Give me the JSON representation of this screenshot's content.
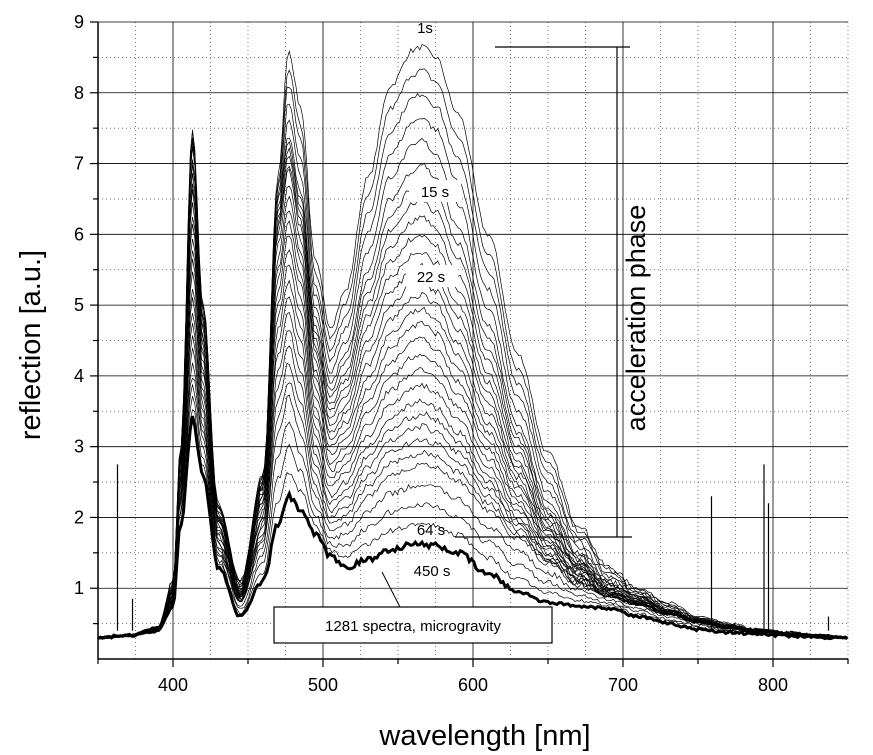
{
  "chart_data": {
    "type": "line",
    "title": "",
    "xlabel": "wavelength [nm]",
    "ylabel": "reflection [a.u.]",
    "xlim": [
      350,
      850
    ],
    "ylim": [
      0,
      9
    ],
    "x_ticks": [
      400,
      500,
      600,
      700,
      800
    ],
    "y_ticks": [
      1,
      2,
      3,
      4,
      5,
      6,
      7,
      8,
      9
    ],
    "grid": "major solid, minor dotted",
    "legend": "none",
    "line_color": "#000000",
    "series": [
      {
        "label": "1s",
        "x": [
          350,
          370,
          390,
          400,
          405,
          413,
          420,
          430,
          445,
          460,
          470,
          477,
          485,
          495,
          505,
          515,
          530,
          545,
          560,
          566,
          575,
          590,
          610,
          630,
          650,
          670,
          690,
          710,
          730,
          750,
          770,
          790,
          810,
          830,
          850
        ],
        "y": [
          0.3,
          0.33,
          0.45,
          1.1,
          3.0,
          7.5,
          5.0,
          2.2,
          1.1,
          2.6,
          6.8,
          8.6,
          7.8,
          5.6,
          4.7,
          5.2,
          6.8,
          8.1,
          8.6,
          8.65,
          8.5,
          7.7,
          6.0,
          4.3,
          2.9,
          1.9,
          1.3,
          1.0,
          0.8,
          0.6,
          0.5,
          0.42,
          0.38,
          0.34,
          0.3
        ]
      },
      {
        "label": "15 s",
        "x": [
          350,
          370,
          390,
          400,
          405,
          413,
          420,
          430,
          445,
          460,
          470,
          477,
          485,
          495,
          505,
          515,
          530,
          545,
          560,
          566,
          575,
          590,
          610,
          630,
          650,
          670,
          690,
          710,
          730,
          750,
          770,
          790,
          810,
          830,
          850
        ],
        "y": [
          0.3,
          0.33,
          0.44,
          1.0,
          2.9,
          7.2,
          4.8,
          2.1,
          1.0,
          2.5,
          6.4,
          7.4,
          6.6,
          4.8,
          3.9,
          4.3,
          5.5,
          6.5,
          6.9,
          7.0,
          6.8,
          6.1,
          4.7,
          3.3,
          2.2,
          1.5,
          1.1,
          0.9,
          0.7,
          0.55,
          0.47,
          0.4,
          0.36,
          0.33,
          0.3
        ]
      },
      {
        "label": "22 s",
        "x": [
          350,
          370,
          390,
          400,
          405,
          413,
          420,
          430,
          445,
          460,
          470,
          477,
          485,
          495,
          505,
          515,
          530,
          545,
          560,
          566,
          575,
          590,
          610,
          630,
          650,
          670,
          690,
          710,
          730,
          750,
          770,
          790,
          810,
          830,
          850
        ],
        "y": [
          0.3,
          0.33,
          0.43,
          0.95,
          2.8,
          6.6,
          4.5,
          2.0,
          0.95,
          2.4,
          6.0,
          6.9,
          6.1,
          4.3,
          3.4,
          3.7,
          4.7,
          5.4,
          5.7,
          5.75,
          5.6,
          5.0,
          3.9,
          2.8,
          1.9,
          1.35,
          1.0,
          0.85,
          0.68,
          0.55,
          0.46,
          0.4,
          0.36,
          0.33,
          0.3
        ]
      },
      {
        "label": "",
        "x": [
          350,
          370,
          390,
          400,
          405,
          413,
          420,
          430,
          445,
          460,
          470,
          477,
          485,
          495,
          505,
          515,
          530,
          545,
          560,
          566,
          575,
          590,
          610,
          630,
          650,
          670,
          690,
          710,
          730,
          750,
          770,
          790,
          810,
          830,
          850
        ],
        "y": [
          0.3,
          0.33,
          0.42,
          0.9,
          2.6,
          5.8,
          4.1,
          1.9,
          0.9,
          2.2,
          5.2,
          6.0,
          5.3,
          3.7,
          2.9,
          3.1,
          3.8,
          4.4,
          4.7,
          4.75,
          4.6,
          4.1,
          3.2,
          2.4,
          1.7,
          1.25,
          0.95,
          0.8,
          0.65,
          0.53,
          0.45,
          0.39,
          0.35,
          0.32,
          0.3
        ]
      },
      {
        "label": "",
        "x": [
          350,
          370,
          390,
          400,
          405,
          413,
          420,
          430,
          445,
          460,
          470,
          477,
          485,
          495,
          505,
          515,
          530,
          545,
          560,
          566,
          575,
          590,
          610,
          630,
          650,
          670,
          690,
          710,
          730,
          750,
          770,
          790,
          810,
          830,
          850
        ],
        "y": [
          0.3,
          0.33,
          0.41,
          0.85,
          2.4,
          4.9,
          3.6,
          1.7,
          0.85,
          1.9,
          4.3,
          4.9,
          4.3,
          3.0,
          2.3,
          2.5,
          3.0,
          3.4,
          3.6,
          3.65,
          3.55,
          3.2,
          2.6,
          2.0,
          1.5,
          1.15,
          0.9,
          0.78,
          0.64,
          0.52,
          0.44,
          0.39,
          0.35,
          0.32,
          0.3
        ]
      },
      {
        "label": "64 s",
        "x": [
          350,
          370,
          390,
          400,
          405,
          413,
          420,
          430,
          445,
          460,
          470,
          477,
          485,
          495,
          505,
          515,
          530,
          545,
          560,
          566,
          575,
          590,
          610,
          630,
          650,
          670,
          690,
          710,
          730,
          750,
          770,
          790,
          810,
          830,
          850
        ],
        "y": [
          0.3,
          0.33,
          0.4,
          0.8,
          2.2,
          4.0,
          3.1,
          1.5,
          0.8,
          1.6,
          3.2,
          3.7,
          3.2,
          2.3,
          1.8,
          1.9,
          2.3,
          2.6,
          2.7,
          2.75,
          2.7,
          2.5,
          2.1,
          1.7,
          1.35,
          1.05,
          0.88,
          0.76,
          0.63,
          0.52,
          0.44,
          0.39,
          0.35,
          0.32,
          0.3
        ]
      },
      {
        "label": "450 s",
        "x": [
          350,
          370,
          390,
          400,
          405,
          413,
          420,
          430,
          445,
          460,
          470,
          477,
          485,
          495,
          505,
          515,
          530,
          545,
          560,
          566,
          575,
          590,
          610,
          630,
          650,
          670,
          690,
          710,
          730,
          750,
          770,
          790,
          810,
          830,
          850
        ],
        "y": [
          0.3,
          0.33,
          0.4,
          0.75,
          1.9,
          3.4,
          2.6,
          1.3,
          0.6,
          1.1,
          1.9,
          2.3,
          2.1,
          1.75,
          1.45,
          1.3,
          1.4,
          1.55,
          1.62,
          1.62,
          1.6,
          1.5,
          1.2,
          0.95,
          0.8,
          0.75,
          0.72,
          0.6,
          0.5,
          0.42,
          0.38,
          0.35,
          0.33,
          0.31,
          0.3
        ]
      }
    ],
    "spikes": [
      {
        "x": 363,
        "y": 2.75
      },
      {
        "x": 373,
        "y": 0.85
      },
      {
        "x": 759,
        "y": 2.3
      },
      {
        "x": 794,
        "y": 2.75
      },
      {
        "x": 797,
        "y": 2.2
      },
      {
        "x": 837,
        "y": 0.6
      }
    ],
    "annotations": {
      "label_1s": "1s",
      "label_15s": "15 s",
      "label_22s": "22 s",
      "label_64s": "64 s",
      "label_450s": "450 s",
      "box_label": "1281 spectra, microgravity",
      "bracket_label": "acceleration phase"
    }
  }
}
